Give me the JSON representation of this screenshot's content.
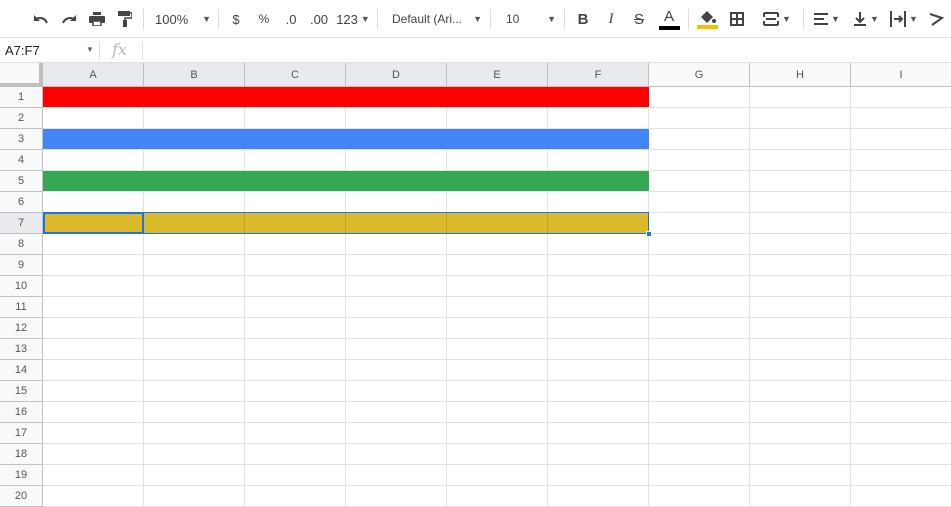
{
  "toolbar": {
    "undo_icon": "undo-icon",
    "redo_icon": "redo-icon",
    "print_icon": "print-icon",
    "paint_format_icon": "paint-format-icon",
    "zoom": "100%",
    "currency": "$",
    "percent": "%",
    "decrease_decimal": ".0",
    "increase_decimal": ".00",
    "more_formats": "123",
    "font": "Default (Ari...",
    "font_size": "10",
    "bold": "B",
    "italic": "I",
    "strikethrough": "S",
    "text_color_label": "A",
    "text_color": "#000000",
    "fill_color": "#fbbc04"
  },
  "formula_bar": {
    "name_box": "A7:F7",
    "fx": "fx",
    "value": ""
  },
  "columns": [
    "A",
    "B",
    "C",
    "D",
    "E",
    "F",
    "G",
    "H",
    "I"
  ],
  "rows": [
    "1",
    "2",
    "3",
    "4",
    "5",
    "6",
    "7",
    "8",
    "9",
    "10",
    "11",
    "12",
    "13",
    "14",
    "15",
    "16",
    "17",
    "18",
    "19",
    "20"
  ],
  "selection": "A7:F7",
  "filled_rows": [
    {
      "row": "1",
      "range": "A1:F1",
      "color": "#ff0000"
    },
    {
      "row": "3",
      "range": "A3:F3",
      "color": "#4285f4"
    },
    {
      "row": "5",
      "range": "A5:F5",
      "color": "#34a853"
    },
    {
      "row": "7",
      "range": "A7:F7",
      "color": "#e6bf1f"
    }
  ]
}
